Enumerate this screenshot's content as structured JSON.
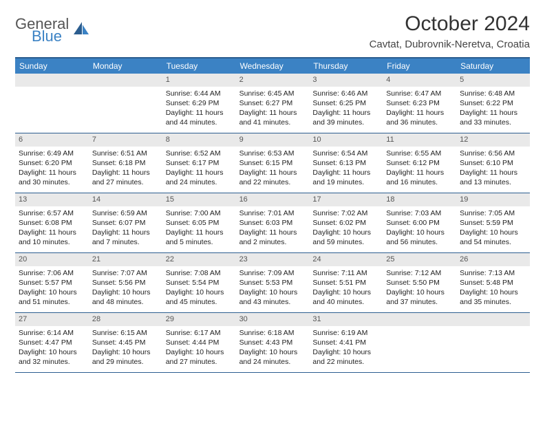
{
  "logo": {
    "line1": "General",
    "line2": "Blue"
  },
  "title": "October 2024",
  "location": "Cavtat, Dubrovnik-Neretva, Croatia",
  "colors": {
    "header_bg": "#3b82c4",
    "header_border": "#2b5d8f",
    "daynum_bg": "#e9e9e9",
    "text": "#222222",
    "logo_gray": "#555555",
    "logo_blue": "#3b82c4",
    "page_bg": "#ffffff"
  },
  "fonts": {
    "family": "Arial",
    "title_size": 30,
    "location_size": 15,
    "header_size": 12,
    "cell_size": 10.5
  },
  "dayNames": [
    "Sunday",
    "Monday",
    "Tuesday",
    "Wednesday",
    "Thursday",
    "Friday",
    "Saturday"
  ],
  "weeks": [
    [
      null,
      null,
      {
        "day": "1",
        "sunrise": "Sunrise: 6:44 AM",
        "sunset": "Sunset: 6:29 PM",
        "daylight": "Daylight: 11 hours and 44 minutes."
      },
      {
        "day": "2",
        "sunrise": "Sunrise: 6:45 AM",
        "sunset": "Sunset: 6:27 PM",
        "daylight": "Daylight: 11 hours and 41 minutes."
      },
      {
        "day": "3",
        "sunrise": "Sunrise: 6:46 AM",
        "sunset": "Sunset: 6:25 PM",
        "daylight": "Daylight: 11 hours and 39 minutes."
      },
      {
        "day": "4",
        "sunrise": "Sunrise: 6:47 AM",
        "sunset": "Sunset: 6:23 PM",
        "daylight": "Daylight: 11 hours and 36 minutes."
      },
      {
        "day": "5",
        "sunrise": "Sunrise: 6:48 AM",
        "sunset": "Sunset: 6:22 PM",
        "daylight": "Daylight: 11 hours and 33 minutes."
      }
    ],
    [
      {
        "day": "6",
        "sunrise": "Sunrise: 6:49 AM",
        "sunset": "Sunset: 6:20 PM",
        "daylight": "Daylight: 11 hours and 30 minutes."
      },
      {
        "day": "7",
        "sunrise": "Sunrise: 6:51 AM",
        "sunset": "Sunset: 6:18 PM",
        "daylight": "Daylight: 11 hours and 27 minutes."
      },
      {
        "day": "8",
        "sunrise": "Sunrise: 6:52 AM",
        "sunset": "Sunset: 6:17 PM",
        "daylight": "Daylight: 11 hours and 24 minutes."
      },
      {
        "day": "9",
        "sunrise": "Sunrise: 6:53 AM",
        "sunset": "Sunset: 6:15 PM",
        "daylight": "Daylight: 11 hours and 22 minutes."
      },
      {
        "day": "10",
        "sunrise": "Sunrise: 6:54 AM",
        "sunset": "Sunset: 6:13 PM",
        "daylight": "Daylight: 11 hours and 19 minutes."
      },
      {
        "day": "11",
        "sunrise": "Sunrise: 6:55 AM",
        "sunset": "Sunset: 6:12 PM",
        "daylight": "Daylight: 11 hours and 16 minutes."
      },
      {
        "day": "12",
        "sunrise": "Sunrise: 6:56 AM",
        "sunset": "Sunset: 6:10 PM",
        "daylight": "Daylight: 11 hours and 13 minutes."
      }
    ],
    [
      {
        "day": "13",
        "sunrise": "Sunrise: 6:57 AM",
        "sunset": "Sunset: 6:08 PM",
        "daylight": "Daylight: 11 hours and 10 minutes."
      },
      {
        "day": "14",
        "sunrise": "Sunrise: 6:59 AM",
        "sunset": "Sunset: 6:07 PM",
        "daylight": "Daylight: 11 hours and 7 minutes."
      },
      {
        "day": "15",
        "sunrise": "Sunrise: 7:00 AM",
        "sunset": "Sunset: 6:05 PM",
        "daylight": "Daylight: 11 hours and 5 minutes."
      },
      {
        "day": "16",
        "sunrise": "Sunrise: 7:01 AM",
        "sunset": "Sunset: 6:03 PM",
        "daylight": "Daylight: 11 hours and 2 minutes."
      },
      {
        "day": "17",
        "sunrise": "Sunrise: 7:02 AM",
        "sunset": "Sunset: 6:02 PM",
        "daylight": "Daylight: 10 hours and 59 minutes."
      },
      {
        "day": "18",
        "sunrise": "Sunrise: 7:03 AM",
        "sunset": "Sunset: 6:00 PM",
        "daylight": "Daylight: 10 hours and 56 minutes."
      },
      {
        "day": "19",
        "sunrise": "Sunrise: 7:05 AM",
        "sunset": "Sunset: 5:59 PM",
        "daylight": "Daylight: 10 hours and 54 minutes."
      }
    ],
    [
      {
        "day": "20",
        "sunrise": "Sunrise: 7:06 AM",
        "sunset": "Sunset: 5:57 PM",
        "daylight": "Daylight: 10 hours and 51 minutes."
      },
      {
        "day": "21",
        "sunrise": "Sunrise: 7:07 AM",
        "sunset": "Sunset: 5:56 PM",
        "daylight": "Daylight: 10 hours and 48 minutes."
      },
      {
        "day": "22",
        "sunrise": "Sunrise: 7:08 AM",
        "sunset": "Sunset: 5:54 PM",
        "daylight": "Daylight: 10 hours and 45 minutes."
      },
      {
        "day": "23",
        "sunrise": "Sunrise: 7:09 AM",
        "sunset": "Sunset: 5:53 PM",
        "daylight": "Daylight: 10 hours and 43 minutes."
      },
      {
        "day": "24",
        "sunrise": "Sunrise: 7:11 AM",
        "sunset": "Sunset: 5:51 PM",
        "daylight": "Daylight: 10 hours and 40 minutes."
      },
      {
        "day": "25",
        "sunrise": "Sunrise: 7:12 AM",
        "sunset": "Sunset: 5:50 PM",
        "daylight": "Daylight: 10 hours and 37 minutes."
      },
      {
        "day": "26",
        "sunrise": "Sunrise: 7:13 AM",
        "sunset": "Sunset: 5:48 PM",
        "daylight": "Daylight: 10 hours and 35 minutes."
      }
    ],
    [
      {
        "day": "27",
        "sunrise": "Sunrise: 6:14 AM",
        "sunset": "Sunset: 4:47 PM",
        "daylight": "Daylight: 10 hours and 32 minutes."
      },
      {
        "day": "28",
        "sunrise": "Sunrise: 6:15 AM",
        "sunset": "Sunset: 4:45 PM",
        "daylight": "Daylight: 10 hours and 29 minutes."
      },
      {
        "day": "29",
        "sunrise": "Sunrise: 6:17 AM",
        "sunset": "Sunset: 4:44 PM",
        "daylight": "Daylight: 10 hours and 27 minutes."
      },
      {
        "day": "30",
        "sunrise": "Sunrise: 6:18 AM",
        "sunset": "Sunset: 4:43 PM",
        "daylight": "Daylight: 10 hours and 24 minutes."
      },
      {
        "day": "31",
        "sunrise": "Sunrise: 6:19 AM",
        "sunset": "Sunset: 4:41 PM",
        "daylight": "Daylight: 10 hours and 22 minutes."
      },
      null,
      null
    ]
  ]
}
